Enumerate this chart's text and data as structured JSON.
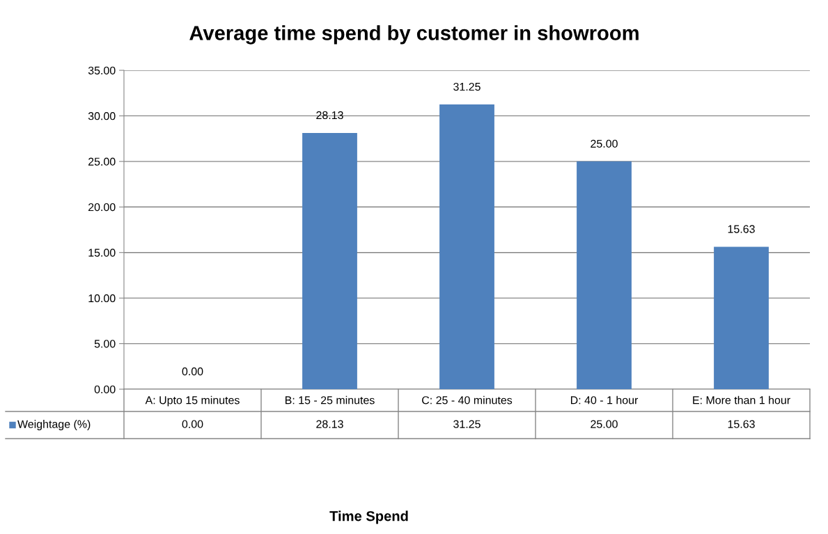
{
  "chart_data": {
    "type": "bar",
    "title": "Average time spend by customer in showroom",
    "annotations": [
      "Time Spend"
    ],
    "categories": [
      "A: Upto 15 minutes",
      "B: 15 - 25 minutes",
      "C: 25 - 40 minutes",
      "D: 40 - 1 hour",
      "E: More than 1 hour"
    ],
    "series": [
      {
        "name": "Weightage (%)",
        "color": "#4f81bd",
        "values": [
          0.0,
          28.13,
          31.25,
          25.0,
          15.63
        ],
        "value_labels": [
          "0.00",
          "28.13",
          "31.25",
          "25.00",
          "15.63"
        ]
      }
    ],
    "ylim": [
      0,
      35
    ],
    "yticks": [
      {
        "value": 0,
        "label": "0.00"
      },
      {
        "value": 5,
        "label": "5.00"
      },
      {
        "value": 10,
        "label": "10.00"
      },
      {
        "value": 15,
        "label": "15.00"
      },
      {
        "value": 20,
        "label": "20.00"
      },
      {
        "value": 25,
        "label": "25.00"
      },
      {
        "value": 30,
        "label": "30.00"
      },
      {
        "value": 35,
        "label": "35.00"
      }
    ],
    "grid": "y",
    "legend": "bottom"
  }
}
